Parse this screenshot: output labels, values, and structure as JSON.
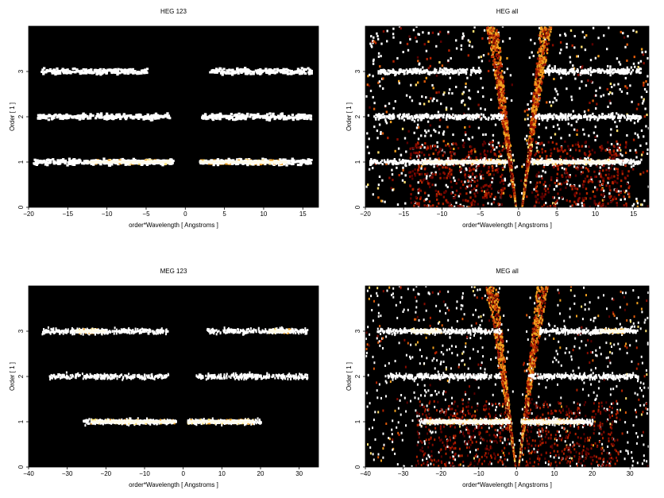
{
  "chart_data": [
    {
      "type": "heatmap",
      "title": "HEG 123",
      "xlabel": "order*Wavelength [ Angstroms ]",
      "ylabel": "Order [ 1 ]",
      "xlim": [
        -20,
        17
      ],
      "ylim": [
        0,
        4
      ],
      "xticks": [
        "−20",
        "−15",
        "−10",
        "−5",
        "0",
        "5",
        "10",
        "15"
      ],
      "xtick_values": [
        -20,
        -15,
        -10,
        -5,
        0,
        5,
        10,
        15
      ],
      "yticks": [
        "0",
        "1",
        "2",
        "3"
      ],
      "ytick_values": [
        0,
        1,
        2,
        3
      ],
      "colormap": "black-red-yellow-white",
      "background": "#000000",
      "bands": [
        {
          "order": 1,
          "ranges": [
            [
              -19.5,
              -1.5
            ],
            [
              1.5,
              16
            ]
          ],
          "dense_ranges": [
            [
              -12.5,
              -1.8
            ],
            [
              1.8,
              13
            ]
          ]
        },
        {
          "order": 2,
          "ranges": [
            [
              -19,
              -2
            ],
            [
              2,
              16
            ]
          ],
          "dense_ranges": []
        },
        {
          "order": 3,
          "ranges": [
            [
              -18.5,
              -5
            ],
            [
              3,
              16
            ]
          ],
          "dense_ranges": []
        }
      ],
      "wedges": false
    },
    {
      "type": "heatmap",
      "title": "HEG all",
      "xlabel": "order*Wavelength [ Angstroms ]",
      "ylabel": "Order [ 1 ]",
      "xlim": [
        -20,
        17
      ],
      "ylim": [
        0,
        4
      ],
      "xticks": [
        "−20",
        "−15",
        "−10",
        "−5",
        "0",
        "5",
        "10",
        "15"
      ],
      "xtick_values": [
        -20,
        -15,
        -10,
        -5,
        0,
        5,
        10,
        15
      ],
      "yticks": [
        "0",
        "1",
        "2",
        "3"
      ],
      "ytick_values": [
        0,
        1,
        2,
        3
      ],
      "colormap": "black-red-yellow-white",
      "background": "#000000",
      "bands": [
        {
          "order": 1,
          "ranges": [
            [
              -19.5,
              -1.5
            ],
            [
              1.5,
              16
            ]
          ],
          "dense_ranges": [
            [
              -12.5,
              -1.8
            ],
            [
              1.8,
              13
            ]
          ]
        },
        {
          "order": 2,
          "ranges": [
            [
              -19,
              -2
            ],
            [
              2,
              16
            ]
          ],
          "dense_ranges": []
        },
        {
          "order": 3,
          "ranges": [
            [
              -18.5,
              -5
            ],
            [
              3,
              16
            ]
          ],
          "dense_ranges": []
        }
      ],
      "wedges": true
    },
    {
      "type": "heatmap",
      "title": "MEG 123",
      "xlabel": "order*Wavelength [ Angstroms ]",
      "ylabel": "Order [ 1 ]",
      "xlim": [
        -40,
        35
      ],
      "ylim": [
        0,
        4
      ],
      "xticks": [
        "−40",
        "−30",
        "−20",
        "−10",
        "0",
        "10",
        "20",
        "30"
      ],
      "xtick_values": [
        -40,
        -30,
        -20,
        -10,
        0,
        10,
        20,
        30
      ],
      "yticks": [
        "0",
        "1",
        "2",
        "3"
      ],
      "ytick_values": [
        0,
        1,
        2,
        3
      ],
      "colormap": "black-red-yellow-white",
      "background": "#000000",
      "bands": [
        {
          "order": 1,
          "ranges": [
            [
              -26,
              -2
            ],
            [
              1,
              20
            ]
          ],
          "dense_ranges": [
            [
              -24,
              -2
            ],
            [
              1,
              18
            ]
          ]
        },
        {
          "order": 2,
          "ranges": [
            [
              -35,
              -4
            ],
            [
              3,
              32
            ]
          ],
          "dense_ranges": []
        },
        {
          "order": 3,
          "ranges": [
            [
              -37,
              -4
            ],
            [
              6,
              32
            ]
          ],
          "dense_ranges": [
            [
              -28,
              -20
            ],
            [
              22,
              28
            ]
          ]
        }
      ],
      "wedges": false
    },
    {
      "type": "heatmap",
      "title": "MEG all",
      "xlabel": "order*Wavelength [ Angstroms ]",
      "ylabel": "Order [ 1 ]",
      "xlim": [
        -40,
        35
      ],
      "ylim": [
        0,
        4
      ],
      "xticks": [
        "−40",
        "−30",
        "−20",
        "−10",
        "0",
        "10",
        "20",
        "30"
      ],
      "xtick_values": [
        -40,
        -30,
        -20,
        -10,
        0,
        10,
        20,
        30
      ],
      "yticks": [
        "0",
        "1",
        "2",
        "3"
      ],
      "ytick_values": [
        0,
        1,
        2,
        3
      ],
      "colormap": "black-red-yellow-white",
      "background": "#000000",
      "bands": [
        {
          "order": 1,
          "ranges": [
            [
              -26,
              -2
            ],
            [
              1,
              20
            ]
          ],
          "dense_ranges": [
            [
              -24,
              -2
            ],
            [
              1,
              18
            ]
          ]
        },
        {
          "order": 2,
          "ranges": [
            [
              -35,
              -4
            ],
            [
              3,
              32
            ]
          ],
          "dense_ranges": []
        },
        {
          "order": 3,
          "ranges": [
            [
              -37,
              -4
            ],
            [
              6,
              32
            ]
          ],
          "dense_ranges": [
            [
              -28,
              -20
            ],
            [
              22,
              28
            ]
          ]
        }
      ],
      "wedges": true
    }
  ]
}
